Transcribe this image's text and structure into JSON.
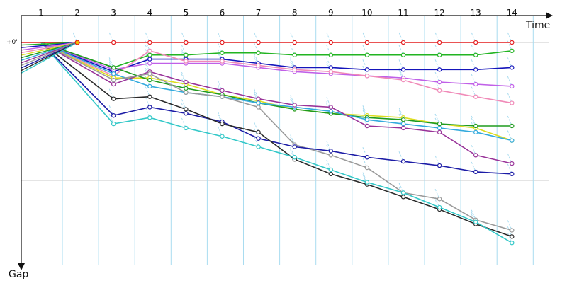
{
  "chart_data": {
    "type": "line",
    "x_title": "Time",
    "y_title": "Gap",
    "zero_label": "+0'",
    "lap_labels": [
      "1",
      "2",
      "3",
      "4",
      "5",
      "6",
      "7",
      "8",
      "9",
      "10",
      "11",
      "12",
      "13",
      "14"
    ],
    "x_range": [
      0,
      15
    ],
    "y_range": [
      0,
      100
    ],
    "grid": true,
    "legend": "none",
    "colors": {
      "grid": "#c8c8c8",
      "lap_divider": "#a9dcf0",
      "axis": "#111111"
    },
    "series": [
      {
        "color": "#e41a1c",
        "values": [
          [
            0.9,
            0
          ],
          [
            1.9,
            0
          ],
          [
            2.9,
            0
          ],
          [
            3.9,
            0
          ],
          [
            4.9,
            0
          ],
          [
            5.9,
            0
          ],
          [
            6.9,
            0
          ],
          [
            7.9,
            0
          ],
          [
            8.9,
            0
          ],
          [
            9.9,
            0
          ],
          [
            10.9,
            0
          ],
          [
            11.9,
            0
          ],
          [
            12.9,
            0
          ],
          [
            13.9,
            0
          ]
        ]
      },
      {
        "color": "#22b422",
        "values": [
          [
            0.9,
            0
          ],
          [
            2.9,
            12
          ],
          [
            3.9,
            6
          ],
          [
            4.9,
            6
          ],
          [
            5.9,
            5
          ],
          [
            6.9,
            5
          ],
          [
            7.9,
            6
          ],
          [
            8.9,
            6
          ],
          [
            9.9,
            6
          ],
          [
            10.9,
            6
          ],
          [
            11.9,
            6
          ],
          [
            12.9,
            6
          ],
          [
            13.9,
            4
          ]
        ]
      },
      {
        "color": "#1515bb",
        "values": [
          [
            0.9,
            0
          ],
          [
            2.9,
            14
          ],
          [
            3.9,
            8
          ],
          [
            4.9,
            8
          ],
          [
            5.9,
            8
          ],
          [
            6.9,
            10
          ],
          [
            7.9,
            12
          ],
          [
            8.9,
            12
          ],
          [
            9.9,
            13
          ],
          [
            10.9,
            13
          ],
          [
            11.9,
            13
          ],
          [
            12.9,
            13
          ],
          [
            13.9,
            12
          ]
        ]
      },
      {
        "color": "#c060e8",
        "values": [
          [
            0.9,
            0
          ],
          [
            2.9,
            13
          ],
          [
            3.9,
            10
          ],
          [
            4.9,
            10
          ],
          [
            5.9,
            10
          ],
          [
            6.9,
            12
          ],
          [
            7.9,
            14
          ],
          [
            8.9,
            15
          ],
          [
            9.9,
            16
          ],
          [
            10.9,
            17
          ],
          [
            11.9,
            19
          ],
          [
            12.9,
            20
          ],
          [
            13.9,
            21
          ]
        ]
      },
      {
        "color": "#f08ab8",
        "values": [
          [
            0.9,
            0
          ],
          [
            2.9,
            16
          ],
          [
            3.9,
            4
          ],
          [
            4.9,
            9
          ],
          [
            5.9,
            9
          ],
          [
            6.9,
            11
          ],
          [
            7.9,
            13
          ],
          [
            8.9,
            14
          ],
          [
            9.9,
            16
          ],
          [
            10.9,
            18
          ],
          [
            11.9,
            23
          ],
          [
            12.9,
            26
          ],
          [
            13.9,
            29
          ]
        ]
      },
      {
        "color": "#dddd20",
        "values": [
          [
            0.9,
            0
          ],
          [
            2.9,
            17
          ],
          [
            3.9,
            17
          ],
          [
            4.9,
            20
          ],
          [
            5.9,
            25
          ],
          [
            6.9,
            28
          ],
          [
            7.9,
            32
          ],
          [
            8.9,
            34
          ],
          [
            9.9,
            35
          ],
          [
            10.9,
            36
          ],
          [
            11.9,
            39
          ],
          [
            12.9,
            41
          ],
          [
            13.9,
            47
          ]
        ]
      },
      {
        "color": "#1f9b1f",
        "values": [
          [
            0.9,
            0
          ],
          [
            2.9,
            12
          ],
          [
            3.9,
            18
          ],
          [
            4.9,
            22
          ],
          [
            5.9,
            25
          ],
          [
            6.9,
            29
          ],
          [
            7.9,
            32
          ],
          [
            8.9,
            34
          ],
          [
            9.9,
            36
          ],
          [
            10.9,
            37
          ],
          [
            11.9,
            39
          ],
          [
            12.9,
            40
          ],
          [
            13.9,
            40
          ]
        ]
      },
      {
        "color": "#33aadd",
        "values": [
          [
            0.9,
            0
          ],
          [
            2.9,
            15
          ],
          [
            3.9,
            21
          ],
          [
            4.9,
            24
          ],
          [
            5.9,
            26
          ],
          [
            6.9,
            29
          ],
          [
            7.9,
            31
          ],
          [
            8.9,
            33
          ],
          [
            9.9,
            37
          ],
          [
            10.9,
            39
          ],
          [
            11.9,
            41
          ],
          [
            12.9,
            43
          ],
          [
            13.9,
            47
          ]
        ]
      },
      {
        "color": "#993399",
        "values": [
          [
            0.9,
            0
          ],
          [
            2.9,
            20
          ],
          [
            3.9,
            14
          ],
          [
            4.9,
            19
          ],
          [
            5.9,
            23
          ],
          [
            6.9,
            27
          ],
          [
            7.9,
            30
          ],
          [
            8.9,
            31
          ],
          [
            9.9,
            40
          ],
          [
            10.9,
            41
          ],
          [
            11.9,
            43
          ],
          [
            12.9,
            54
          ],
          [
            13.9,
            58
          ]
        ]
      },
      {
        "color": "#9a9a9a",
        "values": [
          [
            0.9,
            0
          ],
          [
            2.9,
            18
          ],
          [
            3.9,
            15
          ],
          [
            4.9,
            24
          ],
          [
            5.9,
            26
          ],
          [
            6.9,
            31
          ],
          [
            7.9,
            49
          ],
          [
            8.9,
            54
          ],
          [
            9.9,
            60
          ],
          [
            10.9,
            72
          ],
          [
            11.9,
            75
          ],
          [
            12.9,
            85
          ],
          [
            13.9,
            90
          ]
        ]
      },
      {
        "color": "#1c1ca6",
        "values": [
          [
            0.9,
            0
          ],
          [
            2.9,
            35
          ],
          [
            3.9,
            31
          ],
          [
            4.9,
            34
          ],
          [
            5.9,
            38
          ],
          [
            6.9,
            46
          ],
          [
            7.9,
            50
          ],
          [
            8.9,
            52
          ],
          [
            9.9,
            55
          ],
          [
            10.9,
            57
          ],
          [
            11.9,
            59
          ],
          [
            12.9,
            62
          ],
          [
            13.9,
            63
          ]
        ]
      },
      {
        "color": "#2a2a2a",
        "values": [
          [
            0.9,
            0
          ],
          [
            2.9,
            27
          ],
          [
            3.9,
            26
          ],
          [
            4.9,
            32
          ],
          [
            5.9,
            39
          ],
          [
            6.9,
            43
          ],
          [
            7.9,
            56
          ],
          [
            8.9,
            63
          ],
          [
            9.9,
            68
          ],
          [
            10.9,
            74
          ],
          [
            11.9,
            80
          ],
          [
            12.9,
            87
          ],
          [
            13.9,
            93
          ]
        ]
      },
      {
        "color": "#33c8c8",
        "values": [
          [
            0.9,
            0
          ],
          [
            2.9,
            39
          ],
          [
            3.9,
            36
          ],
          [
            4.9,
            41
          ],
          [
            5.9,
            45
          ],
          [
            6.9,
            50
          ],
          [
            7.9,
            55
          ],
          [
            8.9,
            61
          ],
          [
            9.9,
            67
          ],
          [
            10.9,
            72
          ],
          [
            11.9,
            79
          ],
          [
            12.9,
            86
          ],
          [
            13.9,
            96
          ]
        ]
      }
    ]
  }
}
